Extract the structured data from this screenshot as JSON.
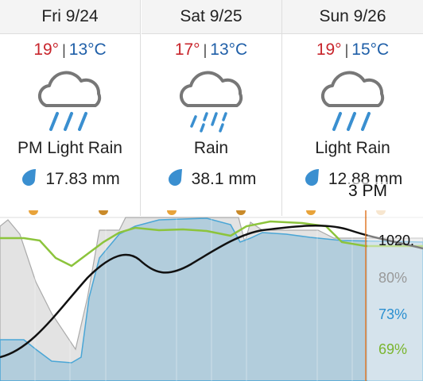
{
  "days": [
    {
      "name": "Fri 9/24",
      "high": "19°",
      "sep": "|",
      "low": "13°C",
      "condition": "PM Light Rain",
      "precip": "17.83 mm"
    },
    {
      "name": "Sat 9/25",
      "high": "17°",
      "sep": "|",
      "low": "13°C",
      "condition": "Rain",
      "precip": "38.1 mm"
    },
    {
      "name": "Sun 9/26",
      "high": "19°",
      "sep": "|",
      "low": "15°C",
      "condition": "Light Rain",
      "precip": "12.88 mm"
    }
  ],
  "graph": {
    "time": "3 PM",
    "pressure": "1020.",
    "cloud": "80%",
    "humidity": "73%",
    "precip_chance": "69%"
  }
}
